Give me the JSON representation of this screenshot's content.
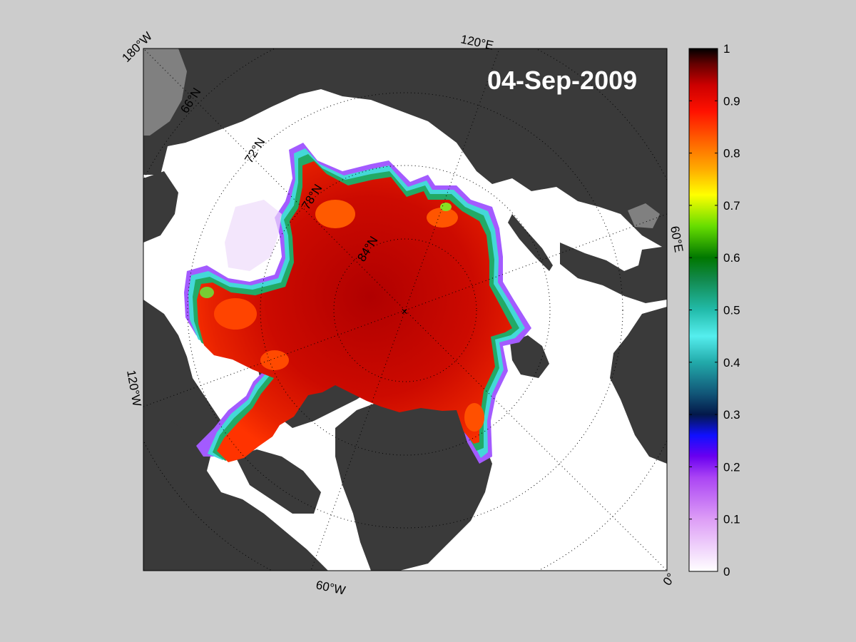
{
  "date_label": "04-Sep-2009",
  "longitude_labels": [
    "180°W",
    "120°E",
    "60°E",
    "0°",
    "60°W",
    "120°W"
  ],
  "latitude_labels": [
    "66°N",
    "72°N",
    "78°N",
    "84°N"
  ],
  "colorbar": {
    "ticks": [
      "0",
      "0.1",
      "0.2",
      "0.3",
      "0.4",
      "0.5",
      "0.6",
      "0.7",
      "0.8",
      "0.9",
      "1"
    ],
    "min": 0,
    "max": 1,
    "colors": [
      "#ffffff",
      "#dd9df6",
      "#8800ee",
      "#1010ff",
      "#03184a",
      "#22bbbb",
      "#55eeee",
      "#008800",
      "#66dd00",
      "#ffff00",
      "#ffaa00",
      "#ff6600",
      "#ff0000",
      "#cc0000",
      "#000000"
    ]
  },
  "map_colors": {
    "land": "#3a3a3a",
    "land_shelf": "#808080",
    "open_water": "#ffffff",
    "ice_core": "#c40000",
    "ice_mid": "#ee2800",
    "ice_edge_green": "#22aa66",
    "ice_edge_cyan": "#44d8d8",
    "ice_fringe_violet": "#9a3cff"
  }
}
